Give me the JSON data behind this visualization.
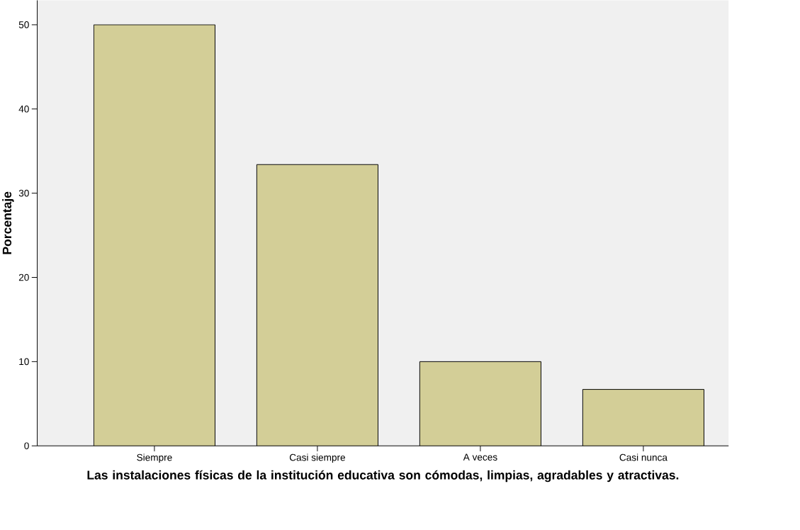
{
  "chart_data": {
    "type": "bar",
    "categories": [
      "Siempre",
      "Casi siempre",
      "A veces",
      "Casi nunca"
    ],
    "values": [
      50,
      33.4,
      10,
      6.7
    ],
    "color": "#d3ce97",
    "xlabel": "Las instalaciones físicas de la institución educativa son cómodas, limpias, agradables y atractivas.",
    "ylabel": "Porcentaje",
    "ylim": [
      0,
      52.9
    ],
    "yticks": [
      0,
      10,
      20,
      30,
      40,
      50
    ],
    "grid": false
  }
}
